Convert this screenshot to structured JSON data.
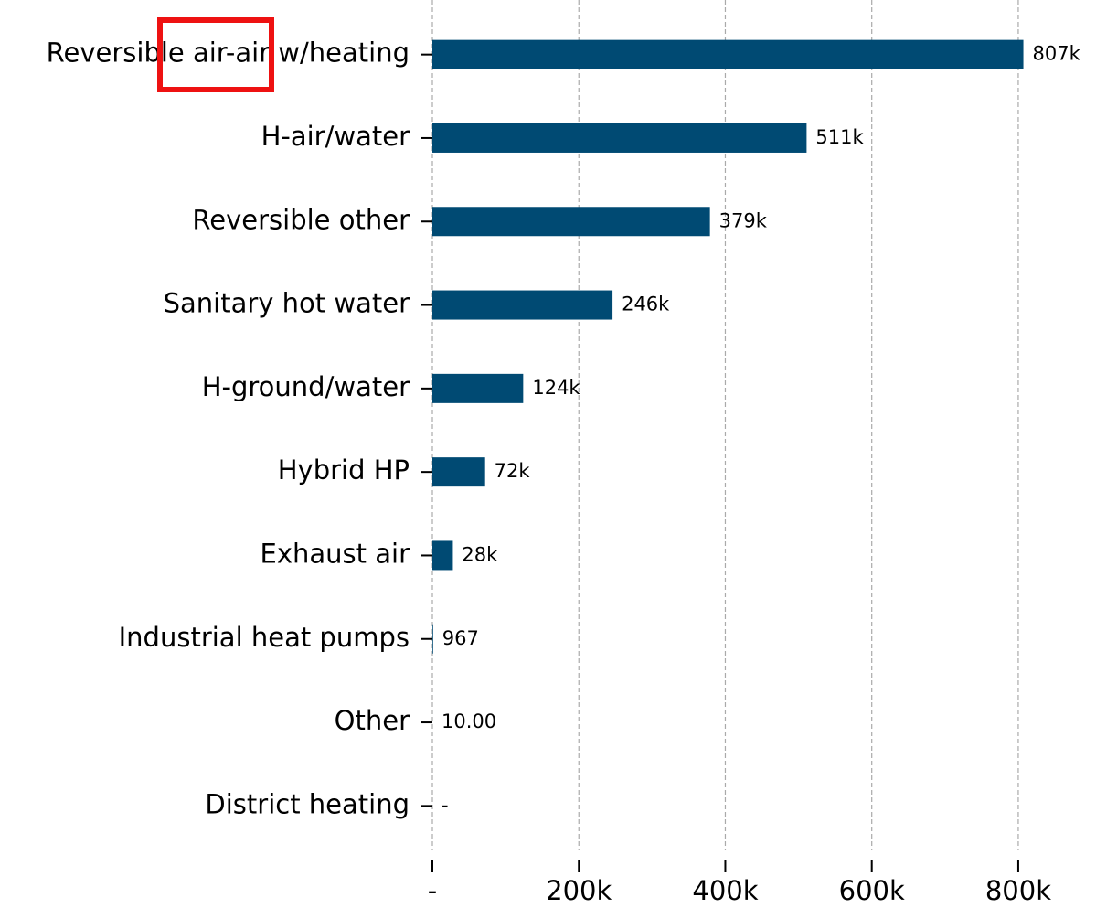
{
  "chart_data": {
    "type": "barh",
    "categories": [
      "Reversible air-air w/heating",
      "H-air/water",
      "Reversible other",
      "Sanitary hot water",
      "H-ground/water",
      "Hybrid HP",
      "Exhaust air",
      "Industrial heat pumps",
      "Other",
      "District heating"
    ],
    "values": [
      807000,
      511000,
      379000,
      246000,
      124000,
      72000,
      28000,
      967,
      10,
      0
    ],
    "value_labels": [
      "807k",
      "511k",
      "379k",
      "246k",
      "124k",
      "72k",
      "28k",
      "967",
      "10.00",
      "-"
    ],
    "color": "#004a73",
    "xlim": [
      0,
      850000
    ],
    "xticks": [
      {
        "value": 0,
        "label": "-"
      },
      {
        "value": 200000,
        "label": "200k"
      },
      {
        "value": 400000,
        "label": "400k"
      },
      {
        "value": 600000,
        "label": "600k"
      },
      {
        "value": 800000,
        "label": "800k"
      }
    ],
    "grid": true
  }
}
